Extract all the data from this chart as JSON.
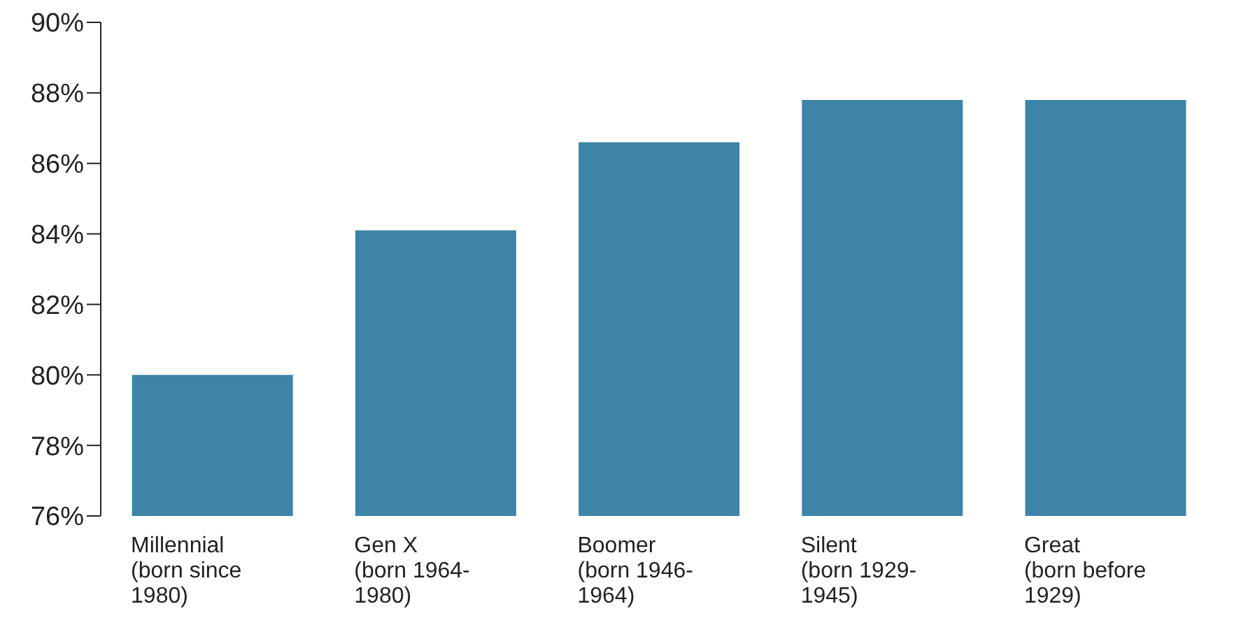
{
  "chart_data": {
    "type": "bar",
    "categories": [
      "Millennial\n(born since\n1980)",
      "Gen X\n(born 1964-\n1980)",
      "Boomer\n(born 1946-\n1964)",
      "Silent\n(born 1929-\n1945)",
      "Great\n(born before\n1929)"
    ],
    "values": [
      80.0,
      84.1,
      86.6,
      87.8,
      87.8
    ],
    "color": "#3d84a8",
    "ylim": [
      76,
      90
    ],
    "yticks": [
      {
        "value": 76,
        "label": "76%"
      },
      {
        "value": 78,
        "label": "78%"
      },
      {
        "value": 80,
        "label": "80%"
      },
      {
        "value": 82,
        "label": "82%"
      },
      {
        "value": 84,
        "label": "84%"
      },
      {
        "value": 86,
        "label": "86%"
      },
      {
        "value": 88,
        "label": "88%"
      },
      {
        "value": 90,
        "label": "90%"
      }
    ],
    "grid": false
  }
}
